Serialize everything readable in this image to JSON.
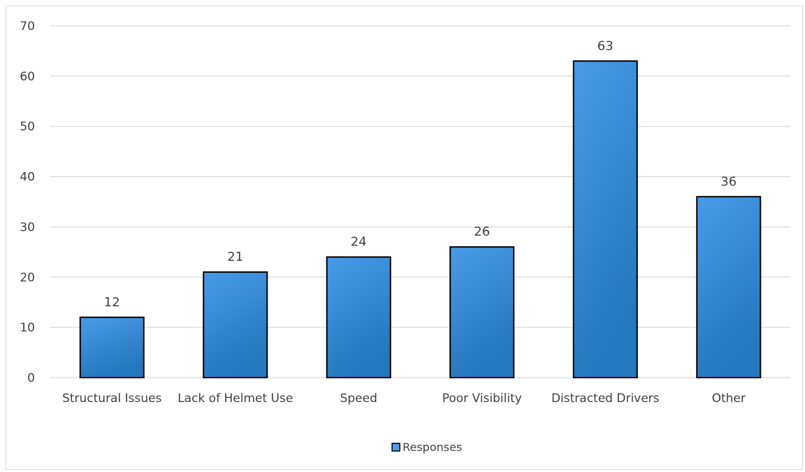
{
  "chart_data": {
    "type": "bar",
    "title": "",
    "xlabel": "",
    "ylabel": "",
    "categories": [
      "Structural Issues",
      "Lack of Helmet Use",
      "Speed",
      "Poor Visibility",
      "Distracted Drivers",
      "Other"
    ],
    "series": [
      {
        "name": "Responses",
        "values": [
          12,
          21,
          24,
          26,
          63,
          36
        ]
      }
    ],
    "ylim": [
      0,
      70
    ],
    "yticks": [
      0,
      10,
      20,
      30,
      40,
      50,
      60,
      70
    ],
    "grid": true,
    "legend_position": "bottom",
    "data_labels": true,
    "colors": {
      "bar_top": "#4a9be8",
      "bar_bottom": "#2478bd",
      "bar_outline": "#000000",
      "gridline": "#d9d9d9",
      "text": "#404040"
    }
  }
}
